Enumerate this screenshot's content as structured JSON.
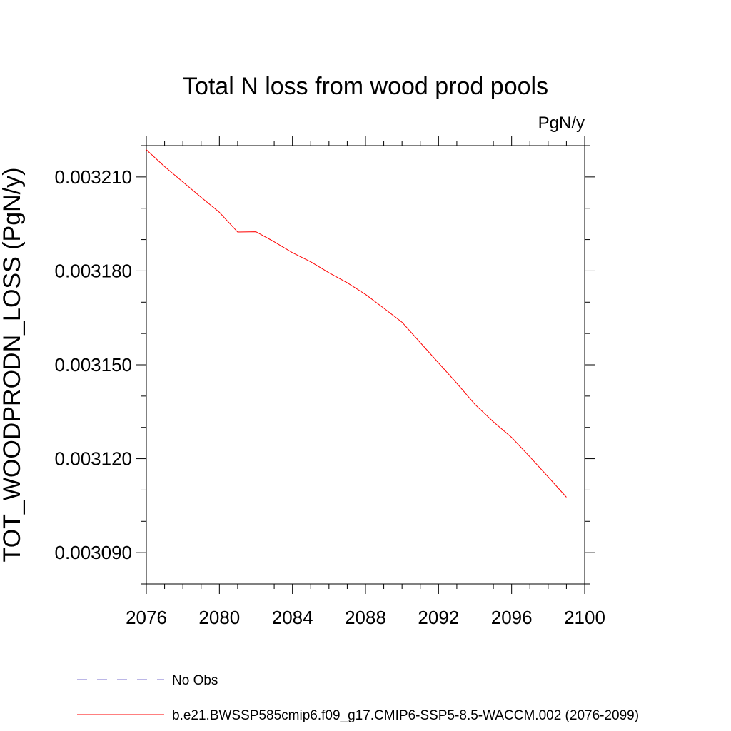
{
  "chart_data": {
    "type": "line",
    "title": "Total N loss from wood prod pools",
    "units_label": "PgN/y",
    "ylabel": "TOT_WOODPRODN_LOSS  (PgN/y)",
    "xlabel": "",
    "xlim": [
      2076,
      2100
    ],
    "ylim": [
      0.00308,
      0.00322
    ],
    "xticks": [
      2076,
      2080,
      2084,
      2088,
      2092,
      2096,
      2100
    ],
    "yticks": [
      0.00309,
      0.00312,
      0.00315,
      0.00318,
      0.00321
    ],
    "ytick_labels": [
      "0.003090",
      "0.003120",
      "0.003150",
      "0.003180",
      "0.003210"
    ],
    "grid": false,
    "series": [
      {
        "name": "b.e21.BWSSP585cmip6.f09_g17.CMIP6-SSP5-8.5-WACCM.002 (2076-2099)",
        "color": "#ff0000",
        "style": "solid",
        "x": [
          2076,
          2077,
          2078,
          2079,
          2080,
          2081,
          2082,
          2083,
          2084,
          2085,
          2086,
          2087,
          2088,
          2089,
          2090,
          2091,
          2092,
          2093,
          2094,
          2095,
          2096,
          2097,
          2098,
          2099
        ],
        "y": [
          0.0032187,
          0.0032133,
          0.0032084,
          0.0032035,
          0.0031987,
          0.0031924,
          0.0031925,
          0.0031893,
          0.0031858,
          0.0031829,
          0.0031794,
          0.0031762,
          0.0031725,
          0.0031681,
          0.0031636,
          0.0031571,
          0.0031506,
          0.0031441,
          0.0031373,
          0.0031318,
          0.0031268,
          0.0031206,
          0.0031142,
          0.0031077
        ]
      }
    ],
    "legend": {
      "placement": "bottom-left",
      "entries": [
        {
          "label": "No Obs",
          "color": "#7a6fcf",
          "style": "dashed"
        },
        {
          "label": "b.e21.BWSSP585cmip6.f09_g17.CMIP6-SSP5-8.5-WACCM.002 (2076-2099)",
          "color": "#ff0000",
          "style": "solid"
        }
      ]
    }
  }
}
